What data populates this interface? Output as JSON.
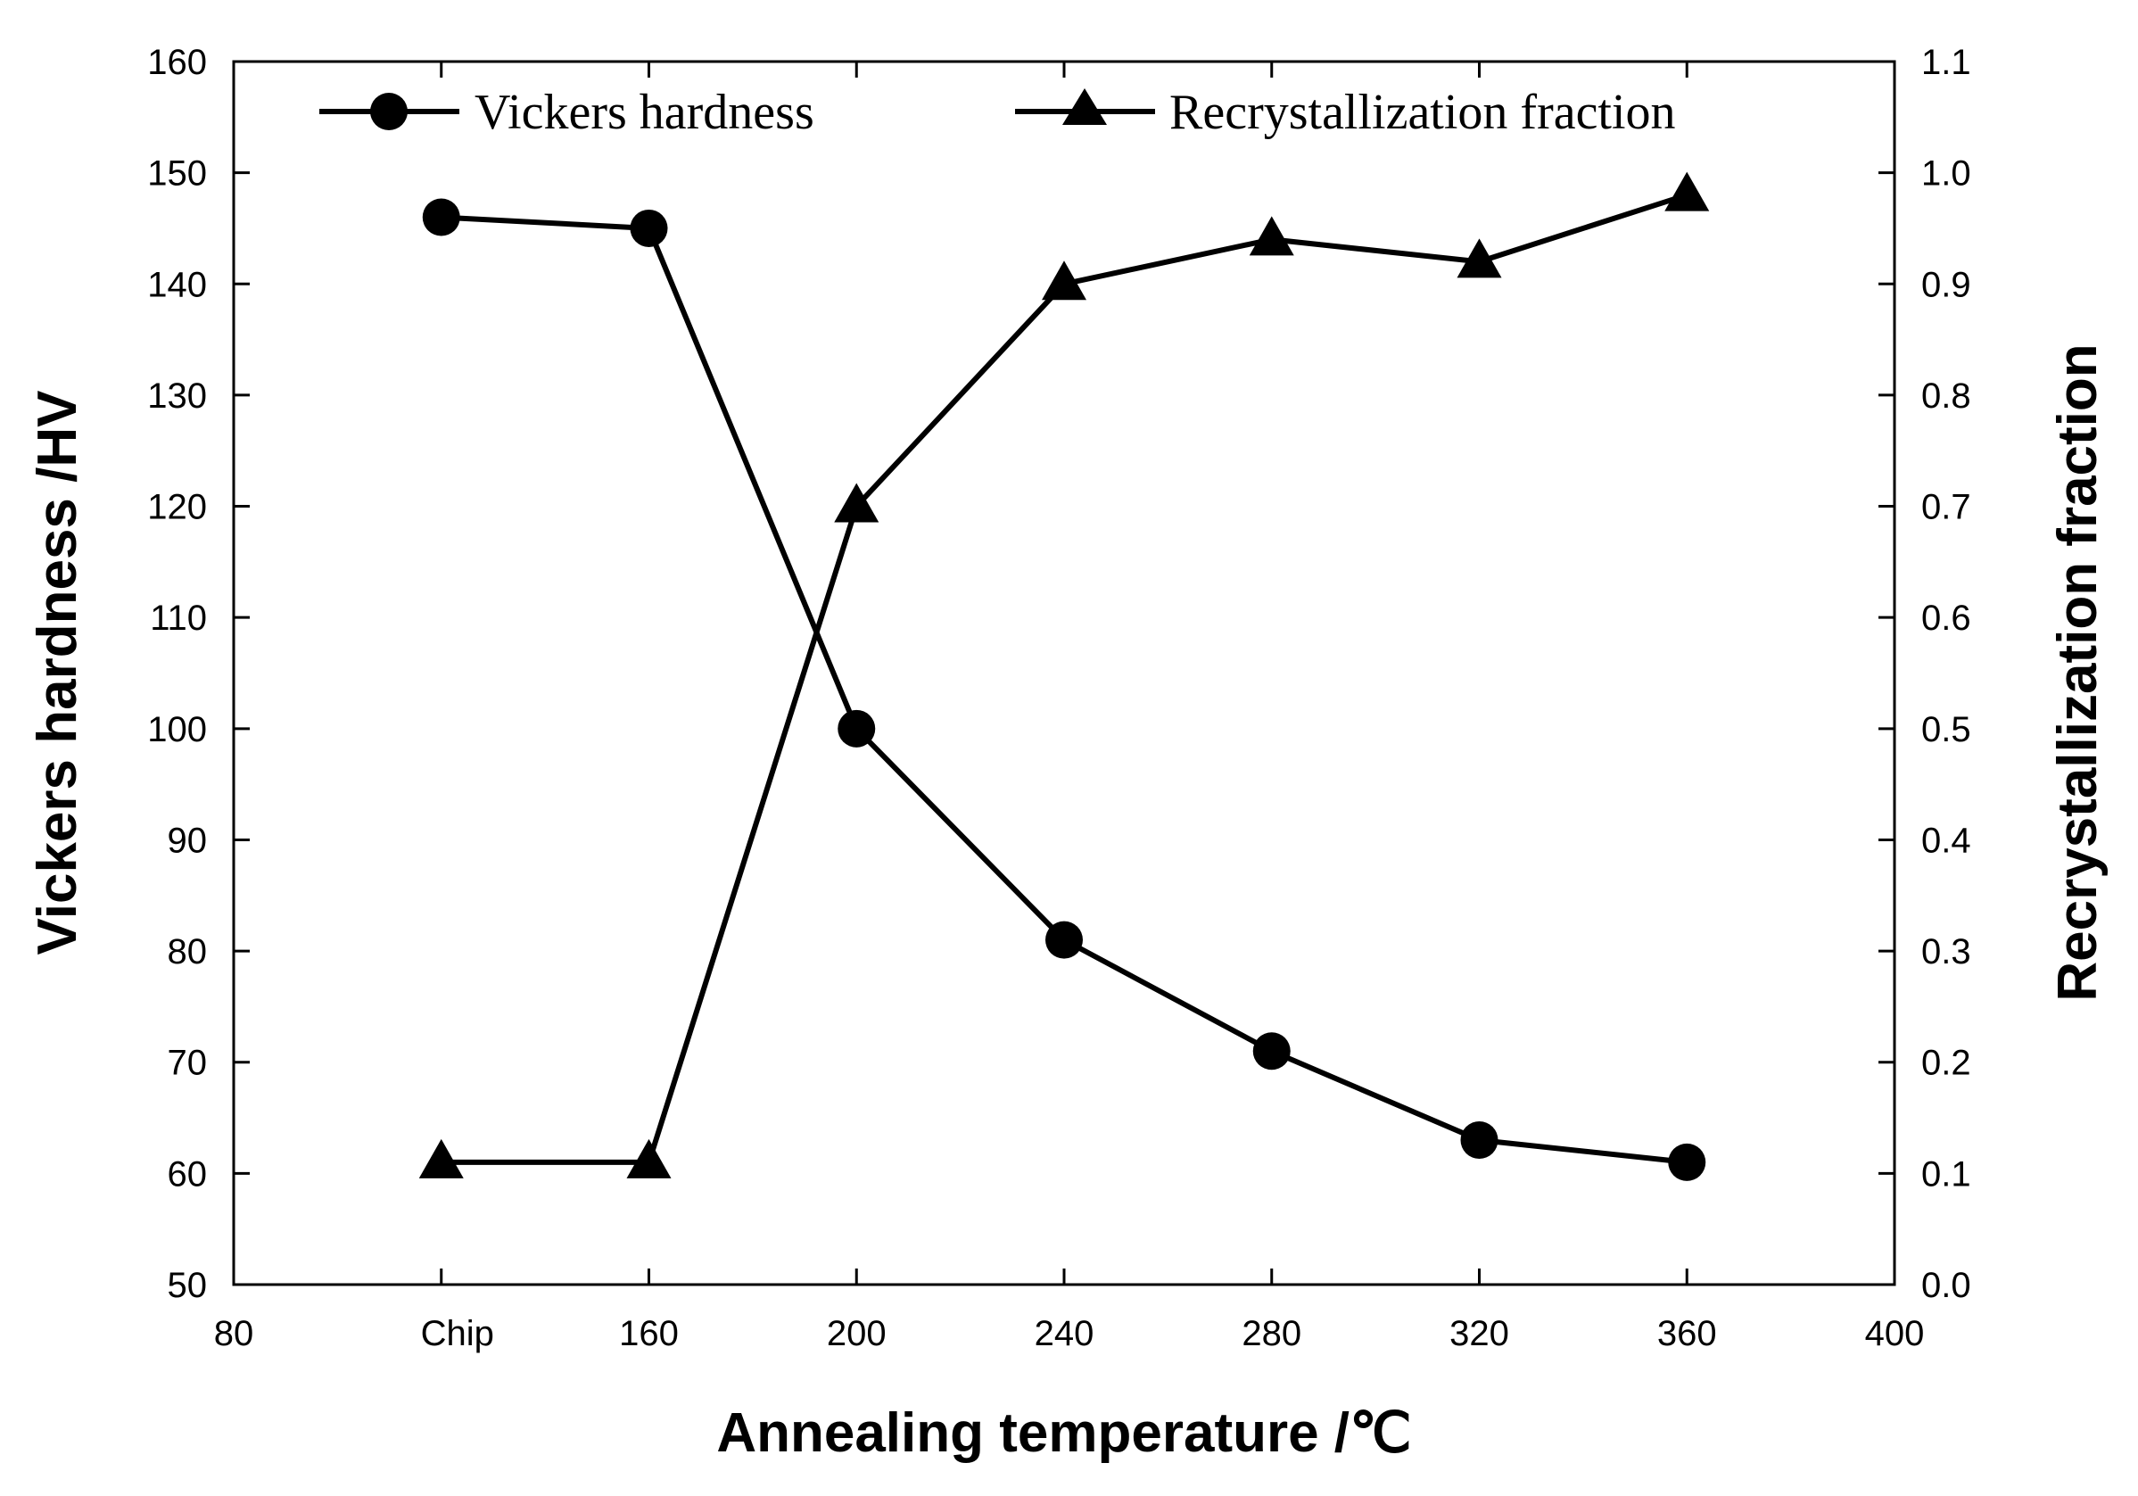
{
  "chart_data": {
    "type": "line",
    "title": "",
    "xlabel": "Annealing temperature /℃",
    "ylabel": "Vickers hardness /HV",
    "y2label": "Recrystallization fraction",
    "xlim": [
      80,
      400
    ],
    "ylim": [
      50,
      160
    ],
    "y2lim": [
      0.0,
      1.1
    ],
    "x_ticks": [
      {
        "value": 80,
        "label": "80"
      },
      {
        "value": 120,
        "label": "Chip"
      },
      {
        "value": 160,
        "label": "160"
      },
      {
        "value": 200,
        "label": "200"
      },
      {
        "value": 240,
        "label": "240"
      },
      {
        "value": 280,
        "label": "280"
      },
      {
        "value": 320,
        "label": "320"
      },
      {
        "value": 360,
        "label": "360"
      },
      {
        "value": 400,
        "label": "400"
      }
    ],
    "y_ticks": [
      "50",
      "60",
      "70",
      "80",
      "90",
      "100",
      "110",
      "120",
      "130",
      "140",
      "150",
      "160"
    ],
    "y2_ticks": [
      "0.0",
      "0.1",
      "0.2",
      "0.3",
      "0.4",
      "0.5",
      "0.6",
      "0.7",
      "0.8",
      "0.9",
      "1.0",
      "1.1"
    ],
    "grid": false,
    "legend_position": "top",
    "x": [
      120,
      160,
      200,
      240,
      280,
      320,
      360
    ],
    "series": [
      {
        "name": "Vickers hardness",
        "axis": "left",
        "marker": "circle",
        "values": [
          146,
          145,
          100,
          81,
          71,
          63,
          61
        ]
      },
      {
        "name": "Recrystallization fraction",
        "axis": "right",
        "marker": "triangle",
        "values": [
          0.11,
          0.11,
          0.7,
          0.9,
          0.94,
          0.92,
          0.98
        ]
      }
    ]
  }
}
